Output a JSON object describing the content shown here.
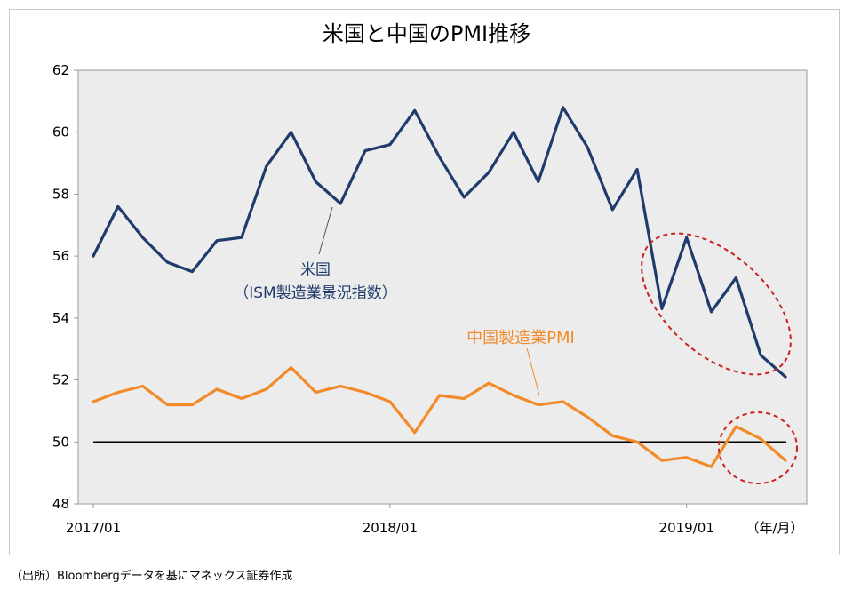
{
  "chart_data": {
    "type": "line",
    "title": "米国と中国のPMI推移",
    "x": [
      "2017/01",
      "2017/02",
      "2017/03",
      "2017/04",
      "2017/05",
      "2017/06",
      "2017/07",
      "2017/08",
      "2017/09",
      "2017/10",
      "2017/11",
      "2017/12",
      "2018/01",
      "2018/02",
      "2018/03",
      "2018/04",
      "2018/05",
      "2018/06",
      "2018/07",
      "2018/08",
      "2018/09",
      "2018/10",
      "2018/11",
      "2018/12",
      "2019/01",
      "2019/02",
      "2019/03",
      "2019/04",
      "2019/05"
    ],
    "x_tick_labels": [
      "2017/01",
      "2018/01",
      "2019/01"
    ],
    "x_unit_label": "（年/月）",
    "ylim": [
      48,
      62
    ],
    "y_ticks": [
      48,
      50,
      52,
      54,
      56,
      58,
      60,
      62
    ],
    "reference_line": 50,
    "series": [
      {
        "name": "米国",
        "name_sub": "（ISM製造業景況指数）",
        "color": "#1f3b6b",
        "values": [
          56.0,
          57.6,
          56.6,
          55.8,
          55.5,
          56.5,
          56.6,
          58.9,
          60.0,
          58.4,
          57.7,
          59.4,
          59.6,
          60.7,
          59.2,
          57.9,
          58.7,
          60.0,
          58.4,
          60.8,
          59.5,
          57.5,
          58.8,
          54.3,
          56.6,
          54.2,
          55.3,
          52.8,
          52.1
        ]
      },
      {
        "name": "中国製造業PMI",
        "color": "#f28a28",
        "values": [
          51.3,
          51.6,
          51.8,
          51.2,
          51.2,
          51.7,
          51.4,
          51.7,
          52.4,
          51.6,
          51.8,
          51.6,
          51.3,
          50.3,
          51.5,
          51.4,
          51.9,
          51.5,
          51.2,
          51.3,
          50.8,
          50.2,
          50.0,
          49.4,
          49.5,
          49.2,
          50.5,
          50.1,
          49.4
        ]
      }
    ],
    "plot_background": "#ececec",
    "highlight_color": "#cc1f1f"
  },
  "footer": {
    "source": "（出所）Bloombergデータを基にマネックス証券作成"
  }
}
